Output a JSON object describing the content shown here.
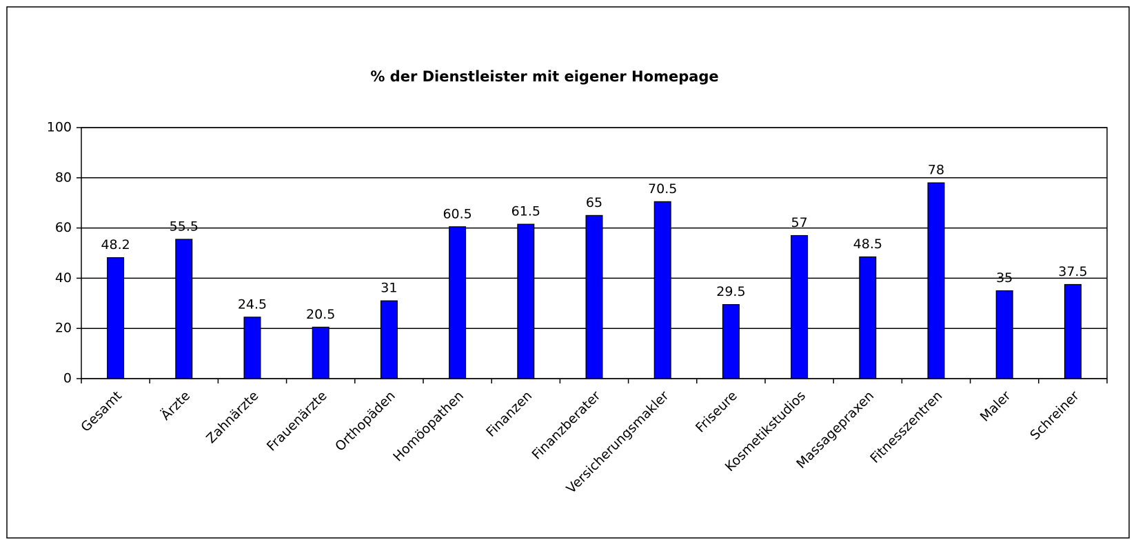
{
  "chart_data": {
    "type": "bar",
    "title": "% der Dienstleister mit eigener Homepage",
    "categories": [
      "Gesamt",
      "Ärzte",
      "Zahnärzte",
      "Frauenärzte",
      "Orthopäden",
      "Homöopathen",
      "Finanzen",
      "Finanzberater",
      "Versicherungsmakler",
      "Friseure",
      "Kosmetikstudios",
      "Massagepraxen",
      "Fitnesszentren",
      "Maler",
      "Schreiner"
    ],
    "values": [
      48.2,
      55.5,
      24.5,
      20.5,
      31,
      60.5,
      61.5,
      65,
      70.5,
      29.5,
      57,
      48.5,
      78,
      35,
      37.5
    ],
    "color": "#0000ff",
    "ylim": [
      0,
      100
    ],
    "yticks": [
      0,
      20,
      40,
      60,
      80,
      100
    ],
    "grid": true
  }
}
